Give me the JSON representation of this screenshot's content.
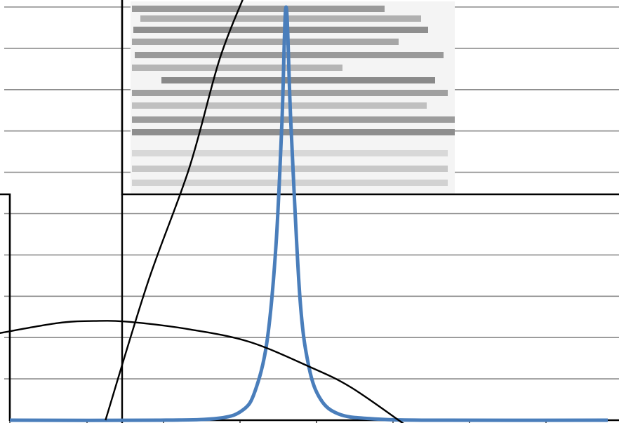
{
  "chart_data": {
    "type": "line",
    "title": "",
    "xlabel": "",
    "ylabel": "",
    "xlim": [
      0,
      10
    ],
    "ylim": [
      0,
      10
    ],
    "grid": true,
    "colors": {
      "peak": "#4a7ebb",
      "curves": "#000000",
      "grid": "#8c8c8c"
    },
    "series": [
      {
        "x": [
          0,
          2.5,
          3.5,
          3.9,
          4.1,
          4.3,
          4.45,
          4.55,
          4.62,
          4.7,
          4.85,
          5.0,
          5.2,
          5.5,
          6.0,
          7.0,
          10.0
        ],
        "values": [
          0,
          0,
          0.05,
          0.25,
          0.7,
          1.9,
          4.2,
          7.2,
          10.0,
          7.2,
          3.0,
          1.3,
          0.5,
          0.15,
          0.04,
          0,
          0
        ]
      },
      {
        "x": [
          1.6,
          2.3,
          3.0,
          3.5,
          3.9
        ],
        "values": [
          0,
          3.3,
          6.1,
          8.7,
          10.2
        ]
      },
      {
        "x": [
          -0.2,
          0.8,
          1.4,
          2.0,
          3.0,
          4.0,
          5.0,
          5.7,
          6.6
        ],
        "values": [
          2.1,
          2.35,
          2.4,
          2.38,
          2.2,
          1.9,
          1.3,
          0.8,
          -0.1
        ]
      }
    ]
  }
}
